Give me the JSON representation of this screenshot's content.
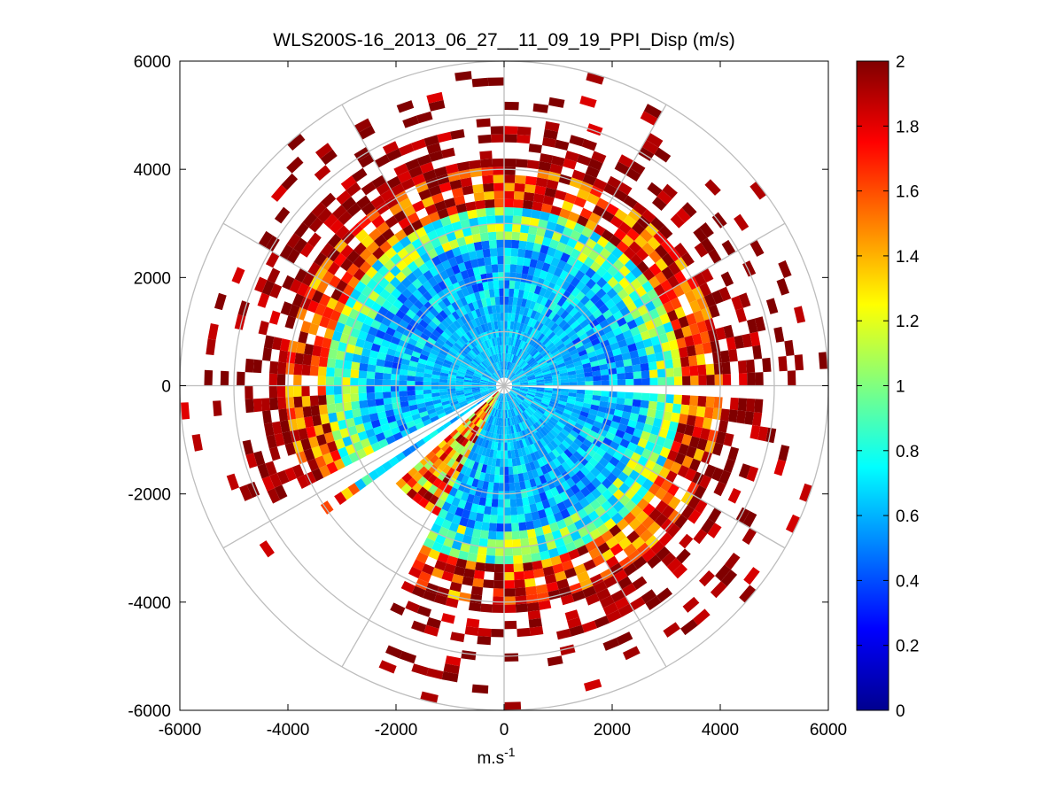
{
  "chart_data": {
    "type": "heatmap",
    "subtype": "polar-ppi",
    "title": "WLS200S-16_2013_06_27__11_09_19_PPI_Disp (m/s)",
    "xlabel_base": "m.s",
    "xlabel_exp": "-1",
    "ylabel": "",
    "xlim": [
      -6000,
      6000
    ],
    "ylim": [
      -6000,
      6000
    ],
    "x_ticks": [
      -6000,
      -4000,
      -2000,
      0,
      2000,
      4000,
      6000
    ],
    "y_ticks": [
      -6000,
      -4000,
      -2000,
      0,
      2000,
      4000,
      6000
    ],
    "x_tick_labels": [
      "-6000",
      "-4000",
      "-2000",
      "0",
      "2000",
      "4000",
      "6000"
    ],
    "y_tick_labels": [
      "6000",
      "4000",
      "2000",
      "0",
      "-2000",
      "-4000",
      "-6000"
    ],
    "polar_grid_radii": [
      1000,
      2000,
      3000,
      4000,
      5000,
      6000
    ],
    "polar_grid_angles_deg": [
      0,
      30,
      60,
      90,
      120,
      150,
      180,
      210,
      240,
      270,
      300,
      330
    ],
    "colorbar": {
      "min": 0,
      "max": 2,
      "colormap": "jet",
      "ticks": [
        0,
        0.2,
        0.4,
        0.6,
        0.8,
        1,
        1.2,
        1.4,
        1.6,
        1.8,
        2
      ],
      "tick_labels": [
        "0",
        "0.2",
        "0.4",
        "0.6",
        "0.8",
        "1",
        "1.2",
        "1.4",
        "1.6",
        "1.8",
        "2"
      ]
    },
    "field_description": [
      {
        "range_m": [
          0,
          1500
        ],
        "typical_value": 0.7
      },
      {
        "range_m": [
          1500,
          2500
        ],
        "typical_value": 0.65
      },
      {
        "range_m": [
          2500,
          3300
        ],
        "typical_value": 0.9
      },
      {
        "range_m": [
          3300,
          4200
        ],
        "typical_value": 1.7
      },
      {
        "range_m": [
          4200,
          6000
        ],
        "typical_value": 2.0,
        "sparse": true
      }
    ],
    "data_gaps_deg": [
      [
        89,
        91
      ],
      [
        227,
        233
      ],
      [
        237,
        242
      ]
    ],
    "blocked_sector_deg": [
      [
        205,
        225
      ]
    ]
  },
  "colors": {
    "axis": "#000000",
    "polar_grid": "#bdbdbd",
    "background": "#ffffff"
  }
}
